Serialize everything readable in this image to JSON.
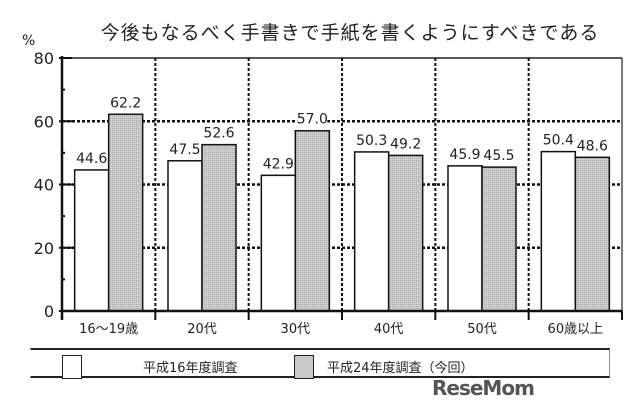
{
  "chart_data": {
    "type": "bar",
    "title": "今後もなるべく手書きで手紙を書くようにすべきである",
    "ylabel": "%",
    "xlabel": "",
    "ylim": [
      0,
      80
    ],
    "yticks": [
      0,
      20,
      40,
      60,
      80
    ],
    "grid": "dotted at 20/40/60 and between categories",
    "categories": [
      "16〜19歳",
      "20代",
      "30代",
      "40代",
      "50代",
      "60歳以上"
    ],
    "series": [
      {
        "name": "平成16年度調査",
        "values": [
          44.6,
          47.5,
          42.9,
          50.3,
          45.9,
          50.4
        ],
        "fill": "#ffffff"
      },
      {
        "name": "平成24年度調査（今回）",
        "values": [
          62.2,
          52.6,
          57.0,
          49.2,
          45.5,
          48.6
        ],
        "fill": "#c8c8c8"
      }
    ],
    "value_labels": [
      [
        "44.6",
        "47.5",
        "42.9",
        "50.3",
        "45.9",
        "50.4"
      ],
      [
        "62.2",
        "52.6",
        "57.0",
        "49.2",
        "45.5",
        "48.6"
      ]
    ],
    "legend_position": "bottom"
  },
  "unit_label": "%",
  "legend": {
    "item1": "平成16年度調査",
    "item2": "平成24年度調査（今回）"
  },
  "watermark": "ReseMom"
}
